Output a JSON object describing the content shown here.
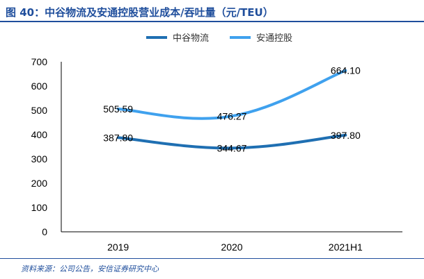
{
  "header": {
    "title": "图 40：中谷物流及安通控股营业成本/吞吐量（元/TEU）"
  },
  "footer": {
    "source": "资料来源：公司公告，安信证券研究中心"
  },
  "chart_data": {
    "type": "line",
    "categories": [
      "2019",
      "2020",
      "2021H1"
    ],
    "series": [
      {
        "name": "中谷物流",
        "values": [
          387.8,
          344.67,
          397.8
        ],
        "labels": [
          "387.80",
          "344.67",
          "397.80"
        ],
        "color": "#1f6fb2"
      },
      {
        "name": "安通控股",
        "values": [
          505.59,
          476.27,
          664.1
        ],
        "labels": [
          "505.59",
          "476.27",
          "664.10"
        ],
        "color": "#3fa1ee"
      }
    ],
    "yticks": [
      "0",
      "100",
      "200",
      "300",
      "400",
      "500",
      "600",
      "700"
    ],
    "ylim": [
      0,
      700
    ],
    "grid": false,
    "legend": "top"
  }
}
